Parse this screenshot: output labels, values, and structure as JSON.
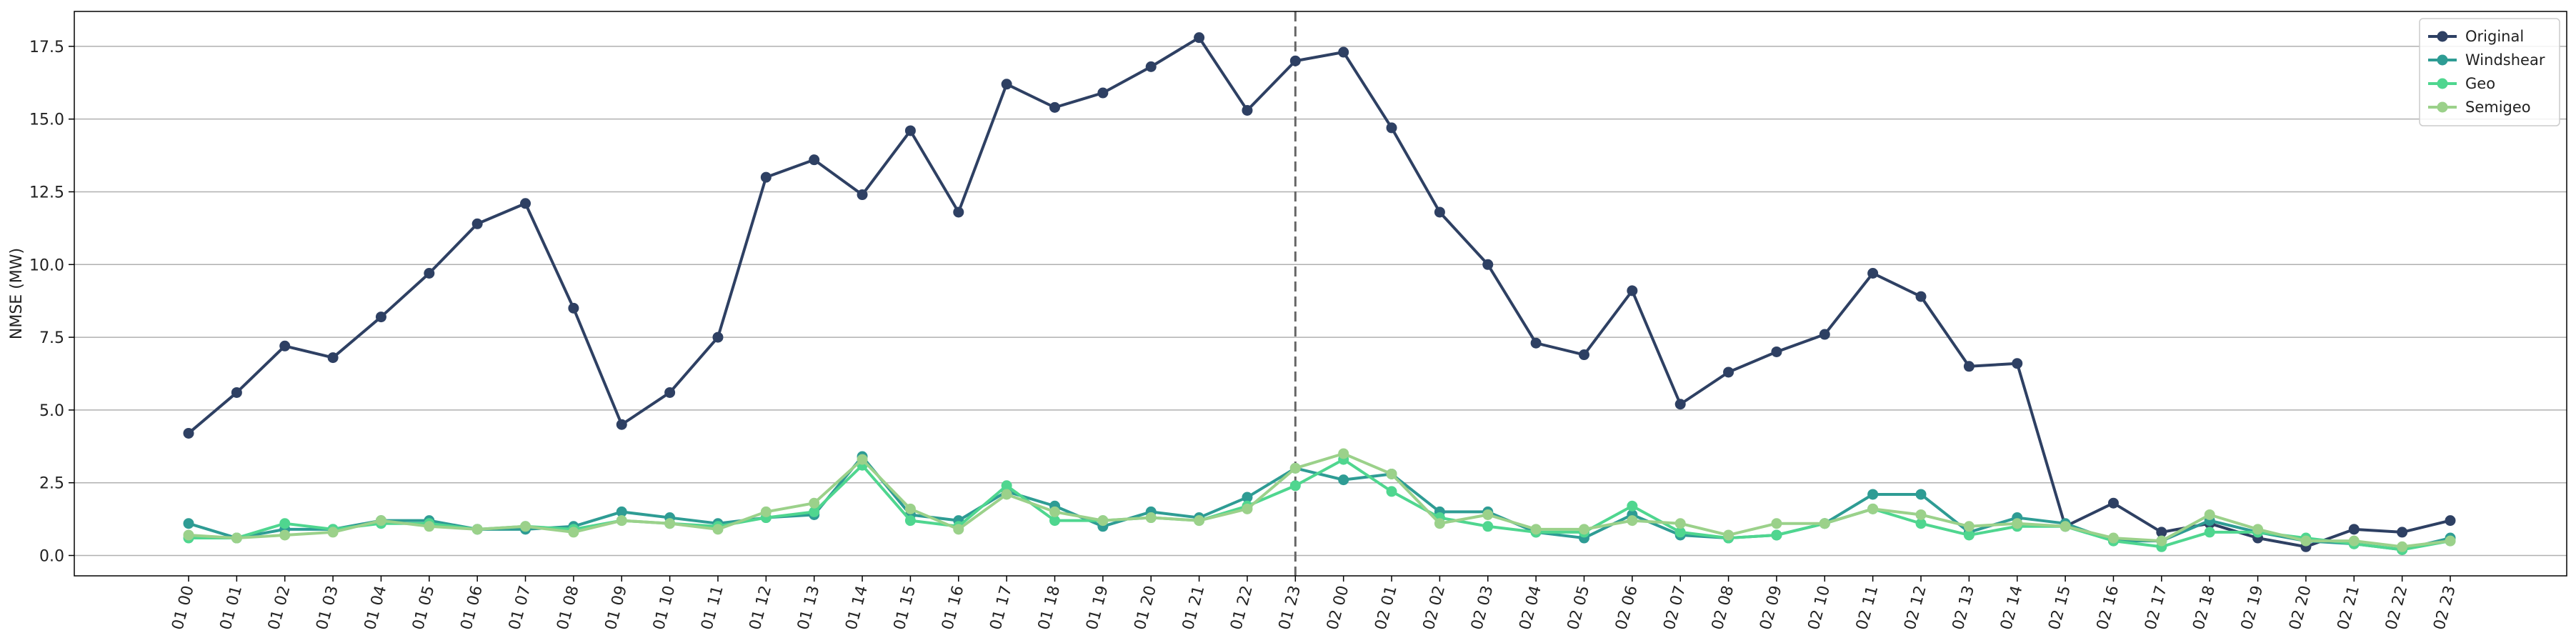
{
  "chart_data": {
    "type": "line",
    "title": "",
    "xlabel": "",
    "ylabel": "NMSE (MW)",
    "ylim": [
      -0.7,
      18.7
    ],
    "yticks": [
      0.0,
      2.5,
      5.0,
      7.5,
      10.0,
      12.5,
      15.0,
      17.5
    ],
    "ytick_labels": [
      "0.0",
      "2.5",
      "5.0",
      "7.5",
      "10.0",
      "12.5",
      "15.0",
      "17.5"
    ],
    "grid": "horizontal",
    "legend_position": "top-right",
    "vline_category": "01 23",
    "categories": [
      "01 00",
      "01 01",
      "01 02",
      "01 03",
      "01 04",
      "01 05",
      "01 06",
      "01 07",
      "01 08",
      "01 09",
      "01 10",
      "01 11",
      "01 12",
      "01 13",
      "01 14",
      "01 15",
      "01 16",
      "01 17",
      "01 18",
      "01 19",
      "01 20",
      "01 21",
      "01 22",
      "01 23",
      "02 00",
      "02 01",
      "02 02",
      "02 03",
      "02 04",
      "02 05",
      "02 06",
      "02 07",
      "02 08",
      "02 09",
      "02 10",
      "02 11",
      "02 12",
      "02 13",
      "02 14",
      "02 15",
      "02 16",
      "02 17",
      "02 18",
      "02 19",
      "02 20",
      "02 21",
      "02 22",
      "02 23"
    ],
    "series": [
      {
        "name": "Original",
        "color": "#2e4063",
        "values": [
          4.2,
          5.6,
          7.2,
          6.8,
          8.2,
          9.7,
          11.4,
          12.1,
          8.5,
          4.5,
          5.6,
          7.5,
          13.0,
          13.6,
          12.4,
          14.6,
          11.8,
          16.2,
          15.4,
          15.9,
          16.8,
          17.8,
          15.3,
          17.0,
          17.3,
          14.7,
          11.8,
          10.0,
          7.3,
          6.9,
          9.1,
          5.2,
          6.3,
          7.0,
          7.6,
          9.7,
          8.9,
          6.5,
          6.6,
          1.0,
          1.8,
          0.8,
          1.1,
          0.6,
          0.3,
          0.9,
          0.8,
          1.2
        ]
      },
      {
        "name": "Windshear",
        "color": "#2e9c94",
        "values": [
          1.1,
          0.6,
          0.9,
          0.9,
          1.2,
          1.2,
          0.9,
          0.9,
          1.0,
          1.5,
          1.3,
          1.1,
          1.3,
          1.4,
          3.4,
          1.4,
          1.2,
          2.2,
          1.7,
          1.0,
          1.5,
          1.3,
          2.0,
          3.0,
          2.6,
          2.8,
          1.5,
          1.5,
          0.8,
          0.6,
          1.4,
          0.7,
          0.6,
          0.7,
          1.1,
          2.1,
          2.1,
          0.8,
          1.3,
          1.1,
          0.5,
          0.5,
          1.2,
          0.8,
          0.5,
          0.4,
          0.2,
          0.6
        ]
      },
      {
        "name": "Geo",
        "color": "#4fd68f",
        "values": [
          0.6,
          0.6,
          1.1,
          0.9,
          1.1,
          1.1,
          0.9,
          1.0,
          0.9,
          1.2,
          1.1,
          1.0,
          1.3,
          1.5,
          3.1,
          1.2,
          1.0,
          2.4,
          1.2,
          1.2,
          1.3,
          1.2,
          1.7,
          2.4,
          3.3,
          2.2,
          1.3,
          1.0,
          0.8,
          0.8,
          1.7,
          0.8,
          0.6,
          0.7,
          1.1,
          1.6,
          1.1,
          0.7,
          1.0,
          1.0,
          0.5,
          0.3,
          0.8,
          0.8,
          0.6,
          0.4,
          0.2,
          0.5
        ]
      },
      {
        "name": "Semigeo",
        "color": "#9bd18a",
        "values": [
          0.7,
          0.6,
          0.7,
          0.8,
          1.2,
          1.0,
          0.9,
          1.0,
          0.8,
          1.2,
          1.1,
          0.9,
          1.5,
          1.8,
          3.3,
          1.6,
          0.9,
          2.1,
          1.5,
          1.2,
          1.3,
          1.2,
          1.6,
          3.0,
          3.5,
          2.8,
          1.1,
          1.4,
          0.9,
          0.9,
          1.2,
          1.1,
          0.7,
          1.1,
          1.1,
          1.6,
          1.4,
          1.0,
          1.1,
          1.0,
          0.6,
          0.5,
          1.4,
          0.9,
          0.5,
          0.5,
          0.3,
          0.5
        ]
      }
    ]
  }
}
